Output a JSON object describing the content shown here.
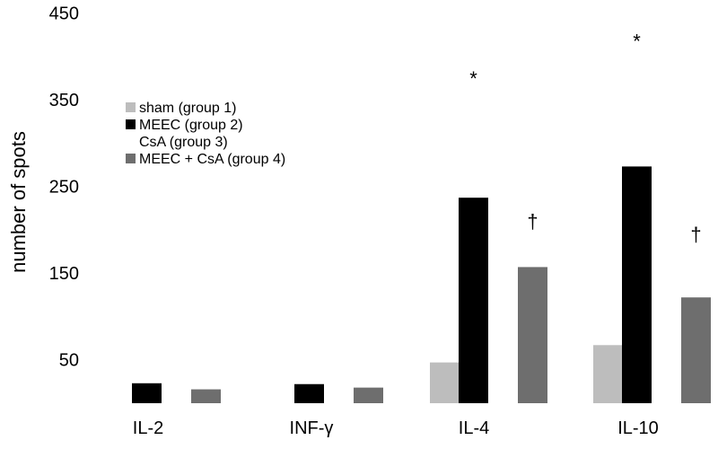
{
  "chart_data": {
    "type": "bar",
    "title": "",
    "xlabel": "",
    "ylabel": "number of spots",
    "ylim": [
      0,
      450
    ],
    "yticks": [
      50,
      150,
      250,
      350,
      450
    ],
    "categories": [
      "IL-2",
      "INF-γ",
      "IL-4",
      "IL-10"
    ],
    "grid": false,
    "legend_position": "left",
    "series": [
      {
        "name": "sham (group 1)",
        "color": "#bdbdbd",
        "values": [
          0,
          0,
          47,
          67
        ]
      },
      {
        "name": "MEEC (group 2)",
        "color": "#000000",
        "values": [
          23,
          22,
          237,
          273
        ]
      },
      {
        "name": "CsA (group 3)",
        "color": "#ffffff",
        "values": [
          0,
          0,
          0,
          0
        ]
      },
      {
        "name": "MEEC + CsA (group 4)",
        "color": "#6e6e6e",
        "values": [
          16,
          18,
          157,
          122
        ]
      }
    ],
    "annotations": [
      {
        "category": "IL-4",
        "series": 1,
        "text": "*",
        "value": 375
      },
      {
        "category": "IL-4",
        "series": 3,
        "text": "†",
        "value": 210
      },
      {
        "category": "IL-10",
        "series": 1,
        "text": "*",
        "value": 418
      },
      {
        "category": "IL-10",
        "series": 3,
        "text": "†",
        "value": 195
      }
    ]
  }
}
